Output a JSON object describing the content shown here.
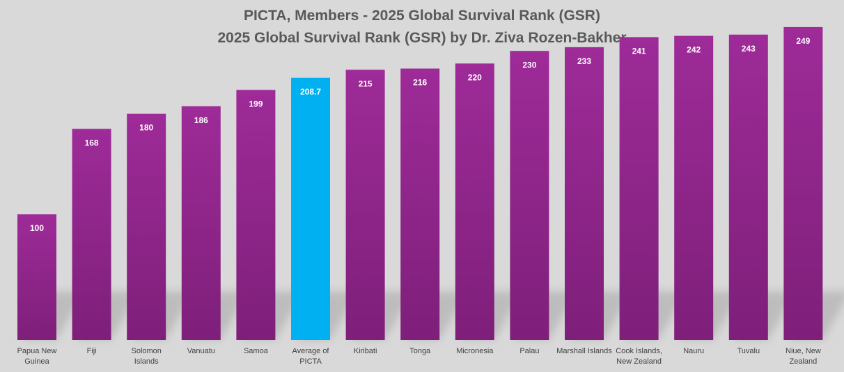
{
  "chart_data": {
    "type": "bar",
    "title": "PICTA, Members - 2025 Global Survival Rank (GSR)",
    "subtitle": "2025 Global Survival Rank (GSR) by Dr. Ziva Rozen-Bakher",
    "xlabel": "",
    "ylabel": "",
    "ylim": [
      0,
      265
    ],
    "grid": false,
    "categories": [
      "Papua New Guinea",
      "Fiji",
      "Solomon Islands",
      "Vanuatu",
      "Samoa",
      "Average of PICTA",
      "Kiribati",
      "Tonga",
      "Micronesia",
      "Palau",
      "Marshall Islands",
      "Cook Islands, New Zealand",
      "Nauru",
      "Tuvalu",
      "Niue, New Zealand"
    ],
    "category_lines": [
      [
        "Papua New",
        "Guinea"
      ],
      [
        "Fiji"
      ],
      [
        "Solomon",
        "Islands"
      ],
      [
        "Vanuatu"
      ],
      [
        "Samoa"
      ],
      [
        "Average of",
        "PICTA"
      ],
      [
        "Kiribati"
      ],
      [
        "Tonga"
      ],
      [
        "Micronesia"
      ],
      [
        "Palau"
      ],
      [
        "Marshall Islands"
      ],
      [
        "Cook Islands,",
        "New Zealand"
      ],
      [
        "Nauru"
      ],
      [
        "Tuvalu"
      ],
      [
        "Niue, New",
        "Zealand"
      ]
    ],
    "values": [
      100,
      168,
      180,
      186,
      199,
      208.7,
      215,
      216,
      220,
      230,
      233,
      241,
      242,
      243,
      249
    ],
    "value_labels": [
      "100",
      "168",
      "180",
      "186",
      "199",
      "208.7",
      "215",
      "216",
      "220",
      "230",
      "233",
      "241",
      "242",
      "243",
      "249"
    ],
    "highlight_index": 5,
    "colors": {
      "bar_top": "#9e2b98",
      "bar_bottom": "#7e1f7a",
      "highlight": "#00b0f0",
      "label_text": "#ffffff",
      "category_text": "#404040",
      "title_text": "#595959",
      "background": "#d9d9d9"
    }
  }
}
